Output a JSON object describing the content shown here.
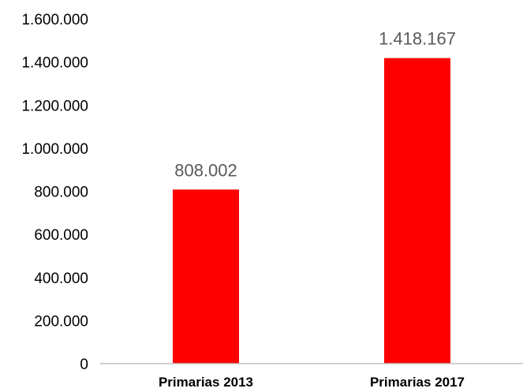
{
  "chart_data": {
    "type": "bar",
    "categories": [
      "Primarias 2013",
      "Primarias 2017"
    ],
    "values": [
      808002,
      1418167
    ],
    "value_labels": [
      "808.002",
      "1.418.167"
    ],
    "yticks": [
      0,
      200000,
      400000,
      600000,
      800000,
      1000000,
      1200000,
      1400000,
      1600000
    ],
    "ytick_labels": [
      "0",
      "200.000",
      "400.000",
      "600.000",
      "800.000",
      "1.000.000",
      "1.200.000",
      "1.400.000",
      "1.600.000"
    ],
    "ylim": [
      0,
      1600000
    ],
    "grid": false,
    "bar_color": "#ff0000",
    "axis_color": "#bfbfbf"
  }
}
